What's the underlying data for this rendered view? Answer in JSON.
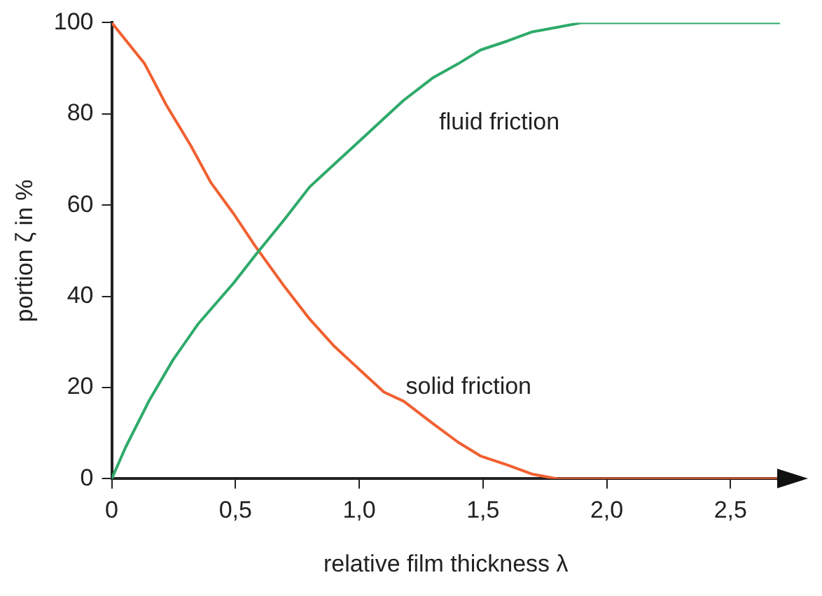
{
  "chart_data": {
    "type": "line",
    "xlabel": "relative film thickness λ",
    "ylabel": "portion ζ in %",
    "xlim": [
      0,
      2.7
    ],
    "xticks": [
      0,
      {
        "value": 0.5,
        "label": "0,5"
      },
      {
        "value": 1,
        "label": "1,0"
      },
      {
        "value": 1.5,
        "label": "1,5"
      },
      {
        "value": 2,
        "label": "2,0"
      },
      {
        "value": 2.5,
        "label": "2,5"
      }
    ],
    "ylim": [
      0,
      100
    ],
    "yticks": [
      0,
      20,
      40,
      60,
      80,
      100
    ],
    "grid": false,
    "marker": "none",
    "line_style": "solid",
    "series": [
      {
        "color": "#2eaa6a",
        "x": [
          0,
          0.057,
          0.15,
          0.247,
          0.35,
          0.494,
          0.58,
          0.7,
          0.8,
          0.9,
          1.0,
          1.1,
          1.18,
          1.3,
          1.4,
          1.49,
          1.6,
          1.7,
          1.8,
          1.9,
          2.2,
          2.7
        ],
        "values": [
          0,
          7,
          17,
          26,
          34,
          43,
          49,
          57,
          64,
          69,
          74,
          79,
          83,
          88,
          91,
          94,
          96,
          98,
          99,
          100,
          100,
          100
        ]
      },
      {
        "color": "#f06030",
        "x": [
          0,
          0.133,
          0.22,
          0.32,
          0.4,
          0.494,
          0.58,
          0.7,
          0.8,
          0.9,
          1.0,
          1.1,
          1.18,
          1.3,
          1.4,
          1.49,
          1.6,
          1.7,
          1.8,
          2.2,
          2.7
        ],
        "values": [
          100,
          91,
          82,
          73,
          65,
          58,
          51,
          42,
          35,
          29,
          24,
          19,
          17,
          12,
          8,
          5,
          3,
          1,
          0,
          0,
          0
        ]
      }
    ],
    "annotations": [
      "fluid friction",
      "solid friction"
    ]
  }
}
